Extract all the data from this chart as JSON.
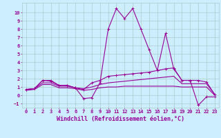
{
  "xlabel": "Windchill (Refroidissement éolien,°C)",
  "x_hours": [
    0,
    1,
    2,
    3,
    4,
    5,
    6,
    7,
    8,
    9,
    10,
    11,
    12,
    13,
    14,
    15,
    16,
    17,
    18,
    19,
    20,
    21,
    22,
    23
  ],
  "series": [
    {
      "name": "main_spike",
      "y": [
        0.7,
        0.8,
        1.8,
        1.8,
        1.2,
        1.2,
        0.9,
        -0.4,
        -0.3,
        1.5,
        8.0,
        10.5,
        9.3,
        10.5,
        8.0,
        5.5,
        3.0,
        7.5,
        3.2,
        1.8,
        1.8,
        -1.2,
        -0.2,
        -0.2
      ],
      "color": "#990099",
      "linewidth": 0.8,
      "marker": "+"
    },
    {
      "name": "upper_flat",
      "y": [
        0.7,
        0.8,
        1.8,
        1.7,
        1.2,
        1.2,
        0.9,
        0.7,
        1.5,
        1.8,
        2.3,
        2.4,
        2.5,
        2.6,
        2.7,
        2.8,
        3.0,
        3.2,
        3.3,
        1.8,
        1.8,
        1.8,
        1.6,
        0.1
      ],
      "color": "#990099",
      "linewidth": 0.8,
      "marker": "+"
    },
    {
      "name": "mid_flat",
      "y": [
        0.7,
        0.8,
        1.5,
        1.5,
        1.1,
        1.1,
        0.9,
        0.8,
        1.0,
        1.3,
        1.5,
        1.6,
        1.7,
        1.8,
        1.9,
        2.0,
        2.1,
        2.2,
        2.3,
        1.4,
        1.4,
        1.4,
        1.4,
        0.1
      ],
      "color": "#990099",
      "linewidth": 0.8,
      "marker": null
    },
    {
      "name": "lower_flat",
      "y": [
        0.6,
        0.7,
        1.3,
        1.3,
        0.9,
        0.9,
        0.8,
        0.6,
        0.7,
        0.9,
        1.0,
        1.0,
        1.1,
        1.1,
        1.1,
        1.1,
        1.1,
        1.1,
        1.1,
        1.0,
        1.0,
        1.0,
        1.0,
        0.0
      ],
      "color": "#990099",
      "linewidth": 0.8,
      "marker": null
    }
  ],
  "ylim": [
    -1.5,
    11.2
  ],
  "xlim": [
    -0.5,
    23.5
  ],
  "yticks": [
    -1,
    0,
    1,
    2,
    3,
    4,
    5,
    6,
    7,
    8,
    9,
    10
  ],
  "xticks": [
    0,
    1,
    2,
    3,
    4,
    5,
    6,
    7,
    8,
    9,
    10,
    11,
    12,
    13,
    14,
    15,
    16,
    17,
    18,
    19,
    20,
    21,
    22,
    23
  ],
  "bg_color": "#cceeff",
  "grid_color": "#aacccc",
  "line_color": "#990099",
  "tick_label_color": "#990099",
  "axis_label_color": "#990099",
  "tick_fontsize": 5.0,
  "xlabel_fontsize": 6.0,
  "figure_width": 3.2,
  "figure_height": 2.0,
  "dpi": 100
}
